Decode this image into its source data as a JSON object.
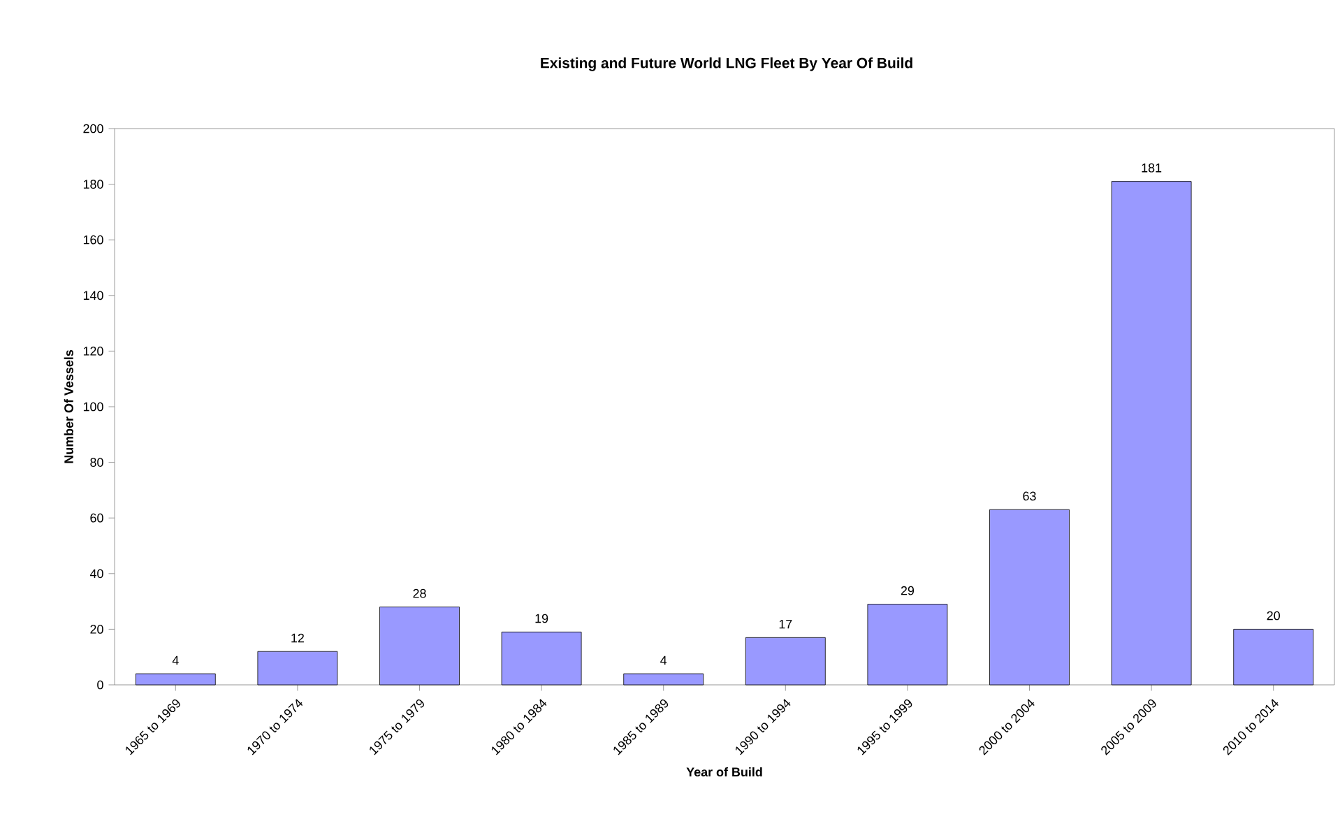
{
  "chart_data": {
    "type": "bar",
    "title": "Existing and Future World LNG Fleet By Year Of Build",
    "xlabel": "Year of Build",
    "ylabel": "Number Of Vessels",
    "categories": [
      "1965 to 1969",
      "1970 to 1974",
      "1975 to 1979",
      "1980 to 1984",
      "1985 to 1989",
      "1990 to 1994",
      "1995 to 1999",
      "2000 to 2004",
      "2005 to 2009",
      "2010 to 2014"
    ],
    "values": [
      4,
      12,
      28,
      19,
      4,
      17,
      29,
      63,
      181,
      20
    ],
    "color": "#9999ff",
    "data_labels": true,
    "grid": false,
    "ylim": [
      0,
      200
    ],
    "yticks": [
      0,
      20,
      40,
      60,
      80,
      100,
      120,
      140,
      160,
      180,
      200
    ]
  }
}
